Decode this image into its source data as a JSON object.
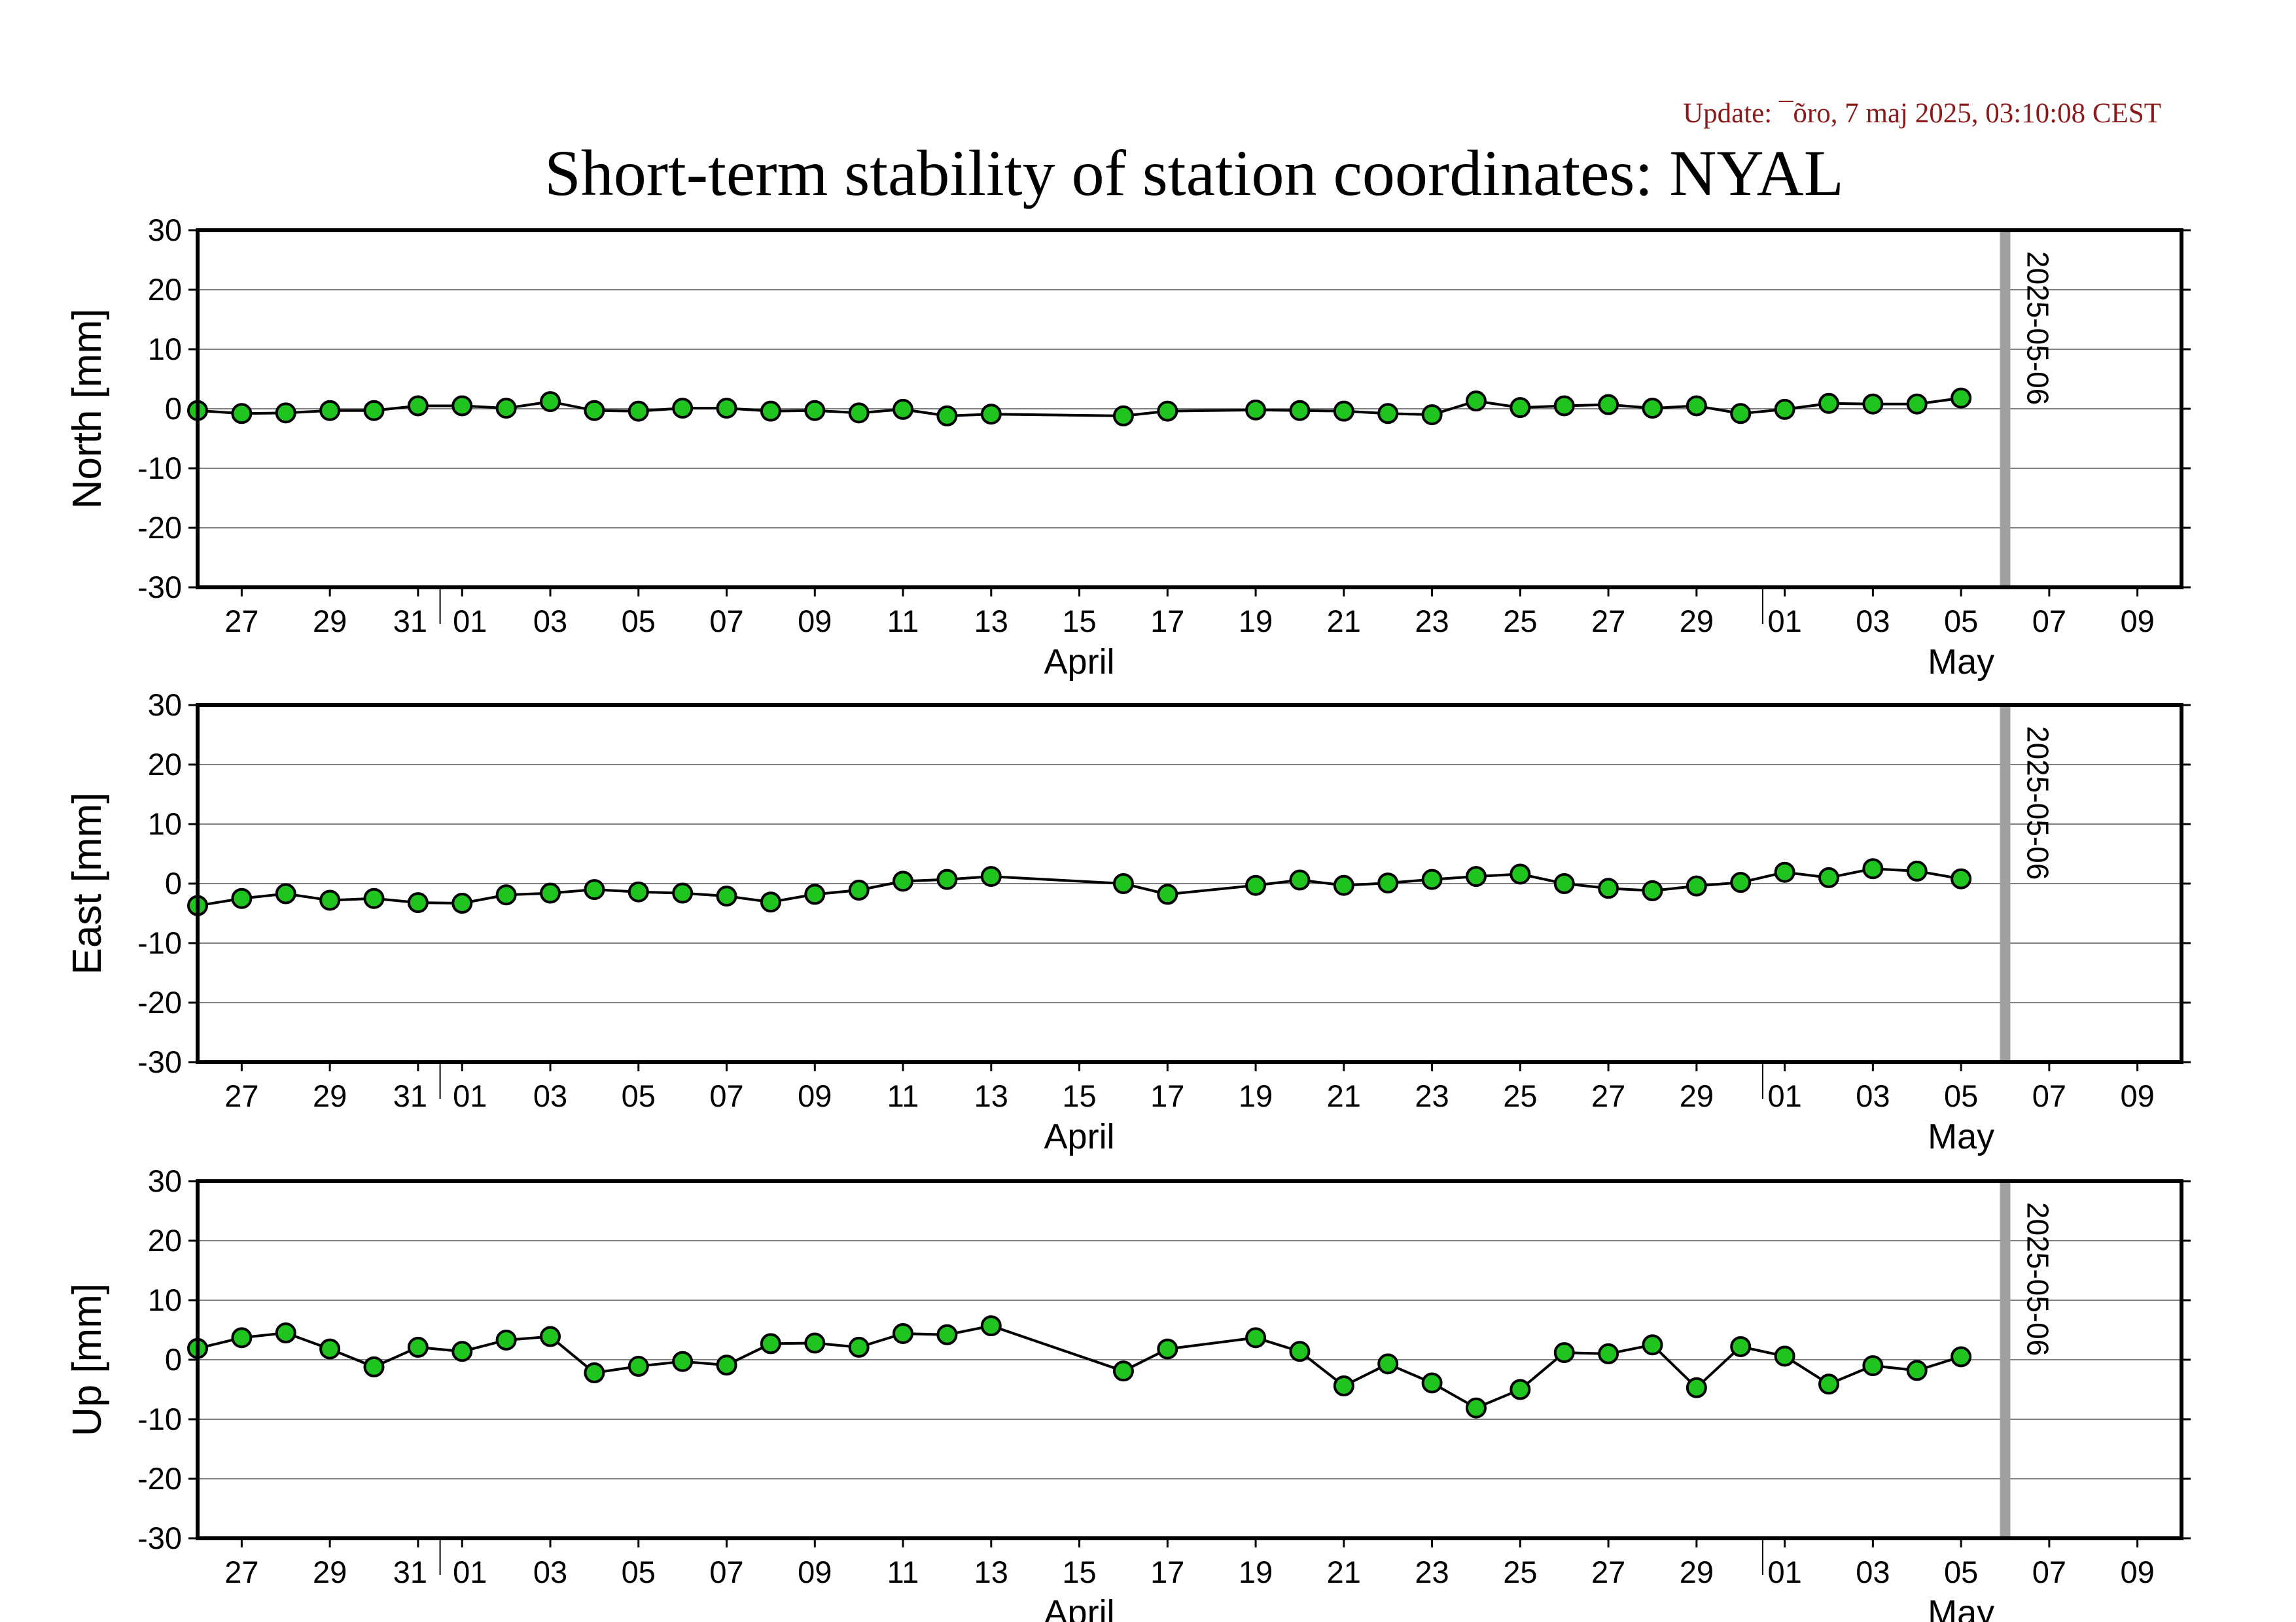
{
  "header": {
    "update": "Update: ¯õro, 7 maj 2025, 03:10:08 CEST",
    "title": "Short-term stability of station coordinates: NYAL"
  },
  "x_axis": {
    "day_ticks": [
      "2025-03-27",
      "2025-03-29",
      "2025-03-31",
      "2025-04-01",
      "2025-04-03",
      "2025-04-05",
      "2025-04-07",
      "2025-04-09",
      "2025-04-11",
      "2025-04-13",
      "2025-04-15",
      "2025-04-17",
      "2025-04-19",
      "2025-04-21",
      "2025-04-23",
      "2025-04-25",
      "2025-04-27",
      "2025-04-29",
      "2025-05-01",
      "2025-05-03",
      "2025-05-05",
      "2025-05-07",
      "2025-05-09"
    ],
    "day_tick_labels": [
      "27",
      "29",
      "31",
      "01",
      "03",
      "05",
      "07",
      "09",
      "11",
      "13",
      "15",
      "17",
      "19",
      "21",
      "23",
      "25",
      "27",
      "29",
      "01",
      "03",
      "05",
      "07",
      "09"
    ],
    "month_boundaries": [
      "2025-04-01",
      "2025-05-01"
    ],
    "month_labels": [
      {
        "text": "April",
        "at": "2025-04-15"
      },
      {
        "text": "May",
        "at": "2025-05-05"
      }
    ]
  },
  "date_marker": {
    "date": "2025-05-06",
    "label": "2025-05-06",
    "color": "#a0a0a0"
  },
  "colors": {
    "point_fill": "#1fc41f",
    "line": "#000000",
    "grid": "#808080"
  },
  "chart_data": [
    {
      "type": "line",
      "ylabel": "North [mm]",
      "xlim": [
        "2025-03-26",
        "2025-05-10"
      ],
      "ylim": [
        -30,
        30
      ],
      "yticks": [
        30,
        20,
        10,
        0,
        -10,
        -20,
        -30
      ],
      "grid": "horizontal",
      "x": [
        "2025-03-26",
        "2025-03-27",
        "2025-03-28",
        "2025-03-29",
        "2025-03-30",
        "2025-03-31",
        "2025-04-01",
        "2025-04-02",
        "2025-04-03",
        "2025-04-04",
        "2025-04-05",
        "2025-04-06",
        "2025-04-07",
        "2025-04-08",
        "2025-04-09",
        "2025-04-10",
        "2025-04-11",
        "2025-04-12",
        "2025-04-13",
        "2025-04-16",
        "2025-04-17",
        "2025-04-19",
        "2025-04-20",
        "2025-04-21",
        "2025-04-22",
        "2025-04-23",
        "2025-04-24",
        "2025-04-25",
        "2025-04-26",
        "2025-04-27",
        "2025-04-28",
        "2025-04-29",
        "2025-04-30",
        "2025-05-01",
        "2025-05-02",
        "2025-05-03",
        "2025-05-04",
        "2025-05-05"
      ],
      "values": [
        -0.3,
        -0.8,
        -0.7,
        -0.3,
        -0.3,
        0.5,
        0.5,
        0.1,
        1.2,
        -0.3,
        -0.4,
        0.1,
        0.1,
        -0.4,
        -0.3,
        -0.7,
        -0.1,
        -1.2,
        -0.9,
        -1.2,
        -0.4,
        -0.2,
        -0.3,
        -0.4,
        -0.8,
        -1.0,
        1.3,
        0.2,
        0.5,
        0.7,
        0.1,
        0.5,
        -0.8,
        -0.1,
        0.9,
        0.8,
        0.8,
        1.8
      ]
    },
    {
      "type": "line",
      "ylabel": "East [mm]",
      "xlim": [
        "2025-03-26",
        "2025-05-10"
      ],
      "ylim": [
        -30,
        30
      ],
      "yticks": [
        30,
        20,
        10,
        0,
        -10,
        -20,
        -30
      ],
      "grid": "horizontal",
      "x": [
        "2025-03-26",
        "2025-03-27",
        "2025-03-28",
        "2025-03-29",
        "2025-03-30",
        "2025-03-31",
        "2025-04-01",
        "2025-04-02",
        "2025-04-03",
        "2025-04-04",
        "2025-04-05",
        "2025-04-06",
        "2025-04-07",
        "2025-04-08",
        "2025-04-09",
        "2025-04-10",
        "2025-04-11",
        "2025-04-12",
        "2025-04-13",
        "2025-04-16",
        "2025-04-17",
        "2025-04-19",
        "2025-04-20",
        "2025-04-21",
        "2025-04-22",
        "2025-04-23",
        "2025-04-24",
        "2025-04-25",
        "2025-04-26",
        "2025-04-27",
        "2025-04-28",
        "2025-04-29",
        "2025-04-30",
        "2025-05-01",
        "2025-05-02",
        "2025-05-03",
        "2025-05-04",
        "2025-05-05"
      ],
      "values": [
        -3.7,
        -2.5,
        -1.7,
        -2.8,
        -2.5,
        -3.2,
        -3.3,
        -1.9,
        -1.6,
        -1.0,
        -1.4,
        -1.6,
        -2.1,
        -3.1,
        -1.8,
        -1.1,
        0.4,
        0.7,
        1.2,
        0.0,
        -1.8,
        -0.3,
        0.6,
        -0.3,
        0.1,
        0.7,
        1.2,
        1.6,
        0.0,
        -0.8,
        -1.2,
        -0.4,
        0.2,
        1.9,
        1.0,
        2.5,
        2.1,
        0.8
      ]
    },
    {
      "type": "line",
      "ylabel": "Up [mm]",
      "xlim": [
        "2025-03-26",
        "2025-05-10"
      ],
      "ylim": [
        -30,
        30
      ],
      "yticks": [
        30,
        20,
        10,
        0,
        -10,
        -20,
        -30
      ],
      "grid": "horizontal",
      "x": [
        "2025-03-26",
        "2025-03-27",
        "2025-03-28",
        "2025-03-29",
        "2025-03-30",
        "2025-03-31",
        "2025-04-01",
        "2025-04-02",
        "2025-04-03",
        "2025-04-04",
        "2025-04-05",
        "2025-04-06",
        "2025-04-07",
        "2025-04-08",
        "2025-04-09",
        "2025-04-10",
        "2025-04-11",
        "2025-04-12",
        "2025-04-13",
        "2025-04-16",
        "2025-04-17",
        "2025-04-19",
        "2025-04-20",
        "2025-04-21",
        "2025-04-22",
        "2025-04-23",
        "2025-04-24",
        "2025-04-25",
        "2025-04-26",
        "2025-04-27",
        "2025-04-28",
        "2025-04-29",
        "2025-04-30",
        "2025-05-01",
        "2025-05-02",
        "2025-05-03",
        "2025-05-04",
        "2025-05-05"
      ],
      "values": [
        1.9,
        3.7,
        4.5,
        1.8,
        -1.2,
        2.1,
        1.4,
        3.3,
        3.9,
        -2.2,
        -1.1,
        -0.3,
        -0.9,
        2.7,
        2.8,
        2.1,
        4.4,
        4.2,
        5.7,
        -1.9,
        1.8,
        3.7,
        1.4,
        -4.4,
        -0.7,
        -3.9,
        -8.1,
        -5.0,
        1.2,
        1.0,
        2.5,
        -4.7,
        2.2,
        0.6,
        -4.1,
        -1.0,
        -1.8,
        0.5
      ]
    }
  ]
}
